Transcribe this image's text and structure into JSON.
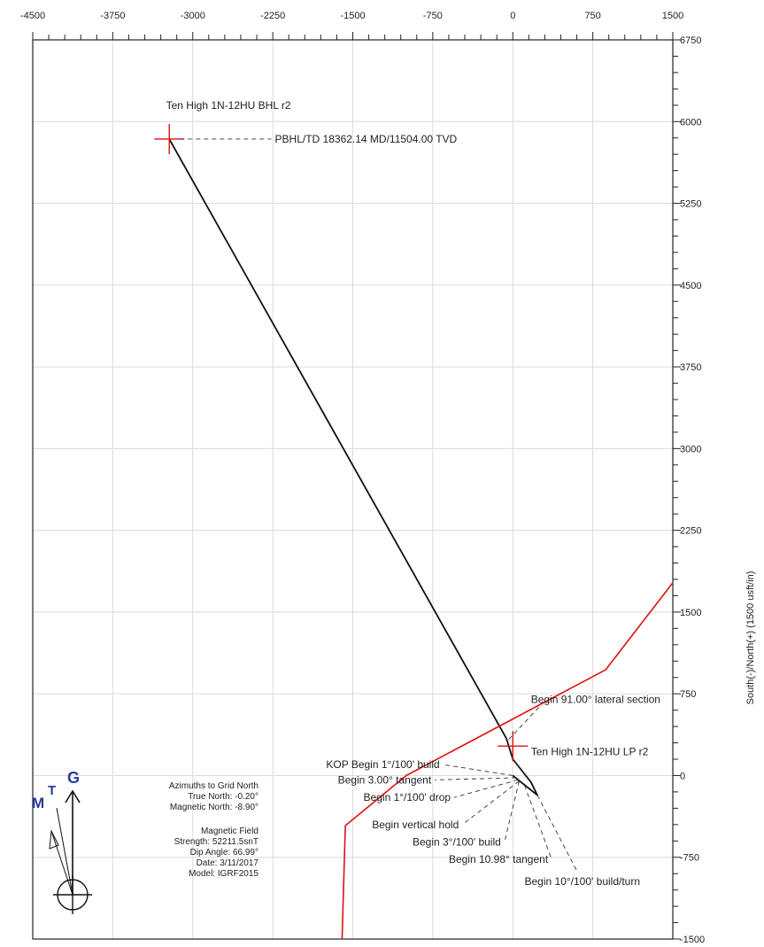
{
  "chart_data": {
    "type": "line",
    "xlim": [
      -4500,
      1500
    ],
    "ylim": [
      -1500,
      6750
    ],
    "x_ticks": [
      -4500,
      -3750,
      -3000,
      -2250,
      -1500,
      -750,
      0,
      750,
      1500
    ],
    "y_ticks": [
      6750,
      6000,
      5250,
      4500,
      3750,
      3000,
      2250,
      1500,
      750,
      0,
      -750,
      -1500
    ],
    "grid": true,
    "ylabel": "South(-)/North(+) (1500 usft/in)",
    "series": [
      {
        "type": "well-path",
        "color": "#111111",
        "x": [
          0,
          230,
          170,
          0,
          -60,
          -3220
        ],
        "y": [
          0,
          -180,
          -60,
          150,
          340,
          5840
        ]
      },
      {
        "type": "boundary",
        "color": "#e01010",
        "x": [
          -1600,
          -1570,
          -1000,
          870,
          1500
        ],
        "y": [
          -1500,
          -460,
          0,
          970,
          1770
        ]
      }
    ],
    "markers": [
      {
        "type": "target-cross",
        "x": -3220,
        "y": 5840,
        "color": "#e01010"
      },
      {
        "type": "target-cross",
        "x": 0,
        "y": 270,
        "color": "#e01010"
      }
    ],
    "annotations": [
      {
        "text": "Ten High 1N-12HU BHL r2",
        "x": -3250,
        "y": 6150,
        "anchor": "start"
      },
      {
        "text": "PBHL/TD 18362.14 MD/11504.00 TVD",
        "x": -2230,
        "y": 5840,
        "anchor": "start",
        "leader_from": [
          -3120,
          5840
        ]
      },
      {
        "text": "Begin 91.00° lateral section",
        "x": 170,
        "y": 700,
        "anchor": "start",
        "leader_from": [
          -40,
          330
        ]
      },
      {
        "text": "Ten High 1N-12HU LP r2",
        "x": 170,
        "y": 220,
        "anchor": "start"
      },
      {
        "text": "KOP Begin 1°/100' build",
        "x": -1750,
        "y": 100,
        "anchor": "start",
        "leader_from": [
          0,
          0
        ]
      },
      {
        "text": "Begin 3.00° tangent",
        "x": -1640,
        "y": -40,
        "anchor": "start",
        "leader_from": [
          30,
          -20
        ]
      },
      {
        "text": "Begin 1°/100' drop",
        "x": -1400,
        "y": -200,
        "anchor": "start",
        "leader_from": [
          50,
          -40
        ]
      },
      {
        "text": "Begin vertical hold",
        "x": -1320,
        "y": -450,
        "anchor": "start",
        "leader_from": [
          60,
          -50
        ]
      },
      {
        "text": "Begin 3°/100' build",
        "x": -940,
        "y": -610,
        "anchor": "start",
        "leader_from": [
          60,
          -50
        ]
      },
      {
        "text": "Begin 10.98° tangent",
        "x": -600,
        "y": -770,
        "anchor": "start",
        "leader_from": [
          110,
          -90
        ]
      },
      {
        "text": "Begin 10°/100' build/turn",
        "x": 110,
        "y": -970,
        "anchor": "start",
        "leader_from": [
          230,
          -180
        ]
      }
    ]
  },
  "info": {
    "azimuths_title": "Azimuths to Grid North",
    "true_north": "True North: -0.20°",
    "magnetic_north": "Magnetic North: -8.90°",
    "field_title": "Magnetic Field",
    "strength": "Strength: 52211.5snT",
    "dip_angle": "Dip Angle: 66.99°",
    "date": "Date: 3/11/2017",
    "model": "Model: IGRF2015"
  },
  "compass": {
    "letters": {
      "m": "M",
      "t": "T",
      "g": "G"
    },
    "color": "#2a3a9a"
  }
}
